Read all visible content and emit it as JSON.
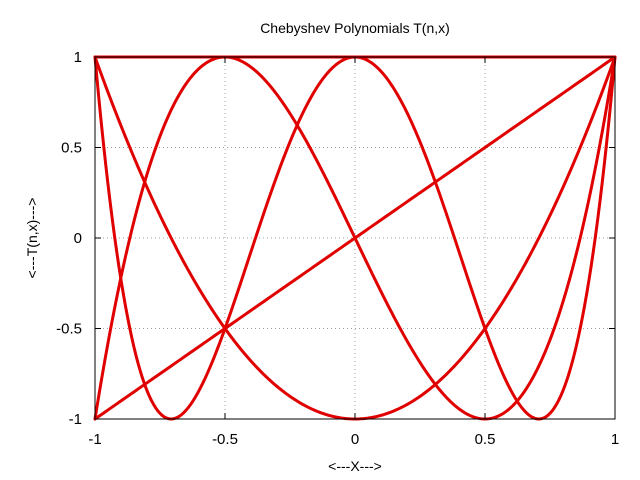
{
  "chart_data": {
    "type": "line",
    "title": "Chebyshev Polynomials T(n,x)",
    "xlabel": "<---X--->",
    "ylabel": "<---T(n,x)--->",
    "xlim": [
      -1,
      1
    ],
    "ylim": [
      -1,
      1
    ],
    "xticks": [
      -1,
      -0.5,
      0,
      0.5,
      1
    ],
    "xtick_labels": [
      "-1",
      "-0.5",
      "0",
      "0.5",
      "1"
    ],
    "yticks": [
      -1,
      -0.5,
      0,
      0.5,
      1
    ],
    "ytick_labels": [
      "-1",
      "-0.5",
      "0",
      "0.5",
      "1"
    ],
    "grid": true,
    "legend": "none",
    "series_color": "#e00000",
    "series": [
      {
        "n": 0,
        "x": [
          -1,
          -0.5,
          0,
          0.5,
          1
        ],
        "y": [
          1,
          1,
          1,
          1,
          1
        ]
      },
      {
        "n": 1,
        "x": [
          -1,
          -0.5,
          0,
          0.5,
          1
        ],
        "y": [
          -1,
          -0.5,
          0,
          0.5,
          1
        ]
      },
      {
        "n": 2,
        "x": [
          -1,
          -0.75,
          -0.5,
          -0.25,
          0,
          0.25,
          0.5,
          0.75,
          1
        ],
        "y": [
          1,
          0.125,
          -0.5,
          -0.875,
          -1,
          -0.875,
          -0.5,
          0.125,
          1
        ]
      },
      {
        "n": 3,
        "x": [
          -1,
          -0.866,
          -0.75,
          -0.5,
          -0.25,
          0,
          0.25,
          0.5,
          0.75,
          0.866,
          1
        ],
        "y": [
          -1,
          0,
          0.563,
          1,
          0.688,
          0,
          -0.688,
          -1,
          -0.563,
          0,
          1
        ]
      },
      {
        "n": 4,
        "x": [
          -1,
          -0.924,
          -0.85,
          -0.707,
          -0.5,
          -0.383,
          -0.25,
          0,
          0.25,
          0.383,
          0.5,
          0.707,
          0.85,
          0.924,
          1
        ],
        "y": [
          1,
          0,
          -0.61,
          -1,
          -0.5,
          0,
          0.531,
          1,
          0.531,
          0,
          -0.5,
          -1,
          -0.61,
          0,
          1
        ]
      }
    ]
  }
}
